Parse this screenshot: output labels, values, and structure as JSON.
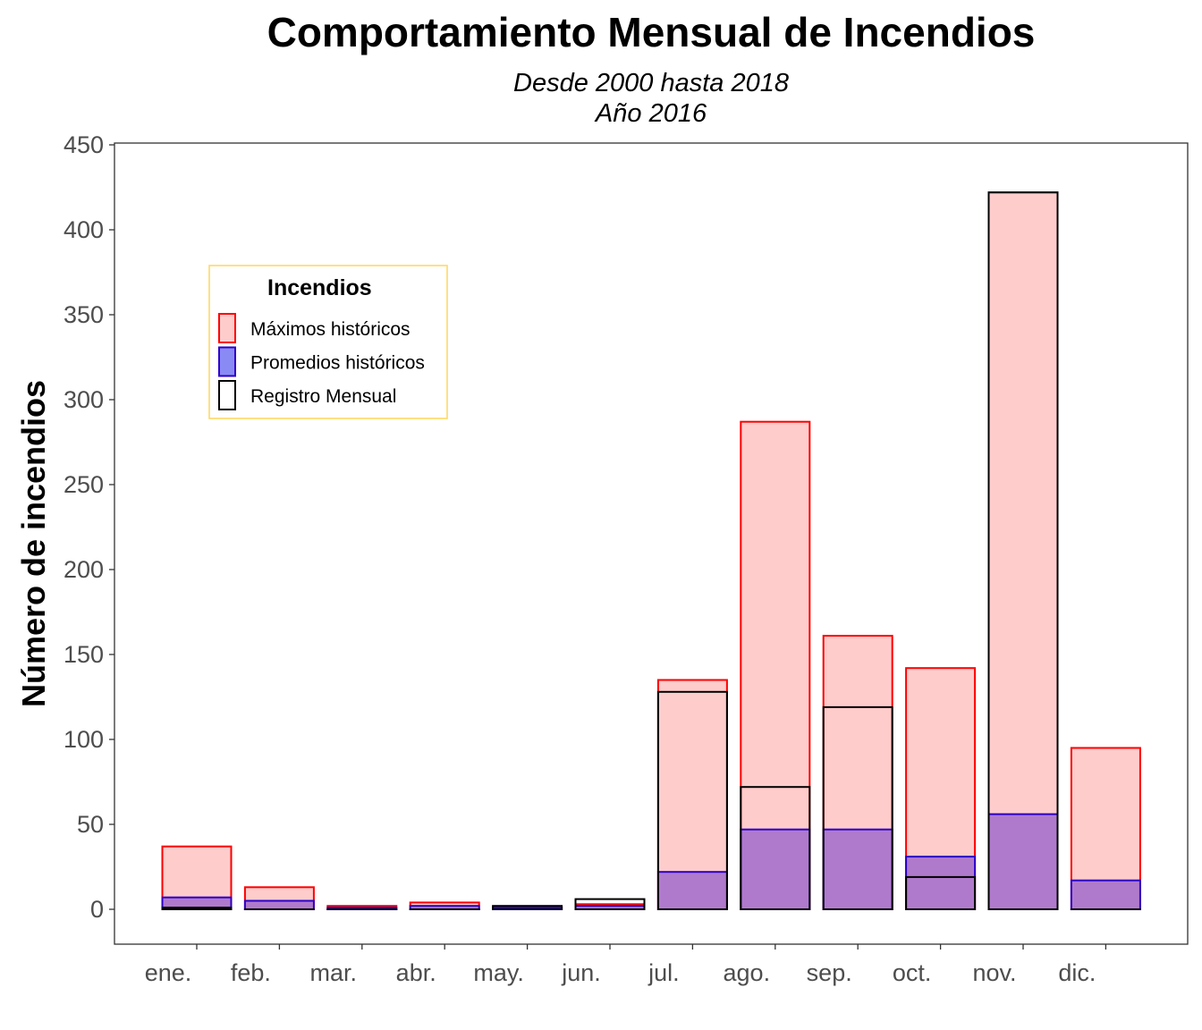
{
  "chart_data": {
    "type": "bar",
    "title": "Comportamiento Mensual de Incendios",
    "subtitle_lines": [
      "Desde 2000 hasta 2018",
      "Año 2016"
    ],
    "xlabel": "",
    "ylabel": "Número de incendios",
    "ylim": [
      -24,
      450
    ],
    "yticks": [
      0,
      50,
      100,
      150,
      200,
      250,
      300,
      350,
      400,
      450
    ],
    "categories": [
      "ene.",
      "feb.",
      "mar.",
      "abr.",
      "may.",
      "jun.",
      "jul.",
      "ago.",
      "sep.",
      "oct.",
      "nov.",
      "dic."
    ],
    "series": [
      {
        "name": "Máximos históricos",
        "fill": "#ffcccc",
        "stroke": "#ff0000",
        "values": [
          37,
          13,
          2,
          4,
          1,
          3,
          135,
          287,
          161,
          142,
          422,
          95
        ]
      },
      {
        "name": "Promedios históricos",
        "fill": "#8a8af5",
        "stroke": "#2b00c8",
        "values": [
          7,
          5,
          1,
          2,
          1,
          2,
          22,
          47,
          47,
          31,
          56,
          17
        ]
      },
      {
        "name": "Registro Mensual",
        "fill": "none",
        "stroke": "#000000",
        "values": [
          1,
          0,
          0,
          0,
          2,
          6,
          128,
          72,
          119,
          19,
          422,
          0
        ]
      }
    ],
    "overlap_color": "#b07acc",
    "legend": {
      "title": "Incendios",
      "position": "top-left",
      "border_color": "#ffd966"
    },
    "grid": false
  }
}
